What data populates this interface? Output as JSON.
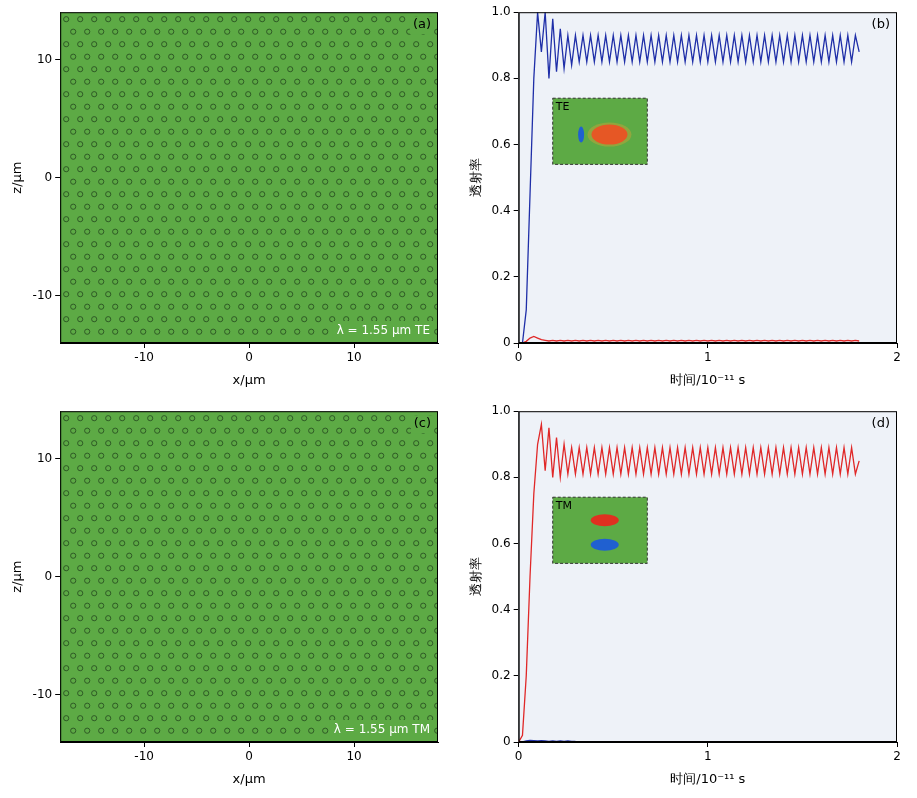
{
  "chart_data": [
    {
      "type": "image",
      "panel": "(a)",
      "annotation": "λ = 1.55 μm TE",
      "x_label": "x/μm",
      "y_label": "z/μm",
      "xlim": [
        -18,
        18
      ],
      "xticks": [
        -10,
        0,
        10
      ],
      "ylim": [
        -14,
        14
      ],
      "yticks": [
        -10,
        0,
        10
      ],
      "grid": false
    },
    {
      "type": "line",
      "panel": "(b)",
      "inset_label": "TE",
      "x_label": "时间/10⁻¹¹ s",
      "y_label": "透射率",
      "xlim": [
        0,
        2
      ],
      "xticks": [
        0,
        1,
        2
      ],
      "ylim": [
        0,
        1
      ],
      "yticks": [
        0,
        0.2,
        0.4,
        0.6,
        0.8,
        {
          "value": 1,
          "label": "1.0"
        }
      ],
      "grid": false,
      "x": [
        0,
        0.02,
        0.04,
        0.06,
        0.08,
        0.1,
        0.12,
        0.14,
        0.16,
        0.18,
        0.2,
        0.22,
        0.24,
        0.26,
        0.28,
        0.3,
        0.32,
        0.34,
        0.36,
        0.38,
        0.4,
        0.42,
        0.44,
        0.46,
        0.48,
        0.5,
        0.52,
        0.54,
        0.56,
        0.58,
        0.6,
        0.62,
        0.64,
        0.66,
        0.68,
        0.7,
        0.72,
        0.74,
        0.76,
        0.78,
        0.8,
        0.82,
        0.84,
        0.86,
        0.88,
        0.9,
        0.92,
        0.94,
        0.96,
        0.98,
        1,
        1.02,
        1.04,
        1.06,
        1.08,
        1.1,
        1.12,
        1.14,
        1.16,
        1.18,
        1.2,
        1.22,
        1.24,
        1.26,
        1.28,
        1.3,
        1.32,
        1.34,
        1.36,
        1.38,
        1.4,
        1.42,
        1.44,
        1.46,
        1.48,
        1.5,
        1.52,
        1.54,
        1.56,
        1.58,
        1.6,
        1.62,
        1.64,
        1.66,
        1.68,
        1.7,
        1.72,
        1.74,
        1.76,
        1.78,
        1.8
      ],
      "series": [
        {
          "color": "#1f2fa8",
          "values": [
            0,
            0,
            0.1,
            0.45,
            0.8,
            1.0,
            0.88,
            1.0,
            0.8,
            0.98,
            0.82,
            0.95,
            0.83,
            0.93,
            0.84,
            0.93,
            0.85,
            0.93,
            0.85,
            0.93,
            0.85,
            0.93,
            0.85,
            0.93,
            0.85,
            0.93,
            0.85,
            0.93,
            0.85,
            0.93,
            0.85,
            0.93,
            0.85,
            0.93,
            0.85,
            0.93,
            0.85,
            0.93,
            0.85,
            0.93,
            0.85,
            0.93,
            0.85,
            0.93,
            0.85,
            0.93,
            0.85,
            0.93,
            0.85,
            0.93,
            0.85,
            0.93,
            0.85,
            0.93,
            0.85,
            0.93,
            0.85,
            0.93,
            0.85,
            0.93,
            0.85,
            0.93,
            0.85,
            0.93,
            0.85,
            0.93,
            0.85,
            0.93,
            0.85,
            0.93,
            0.85,
            0.93,
            0.85,
            0.93,
            0.85,
            0.93,
            0.85,
            0.93,
            0.85,
            0.93,
            0.85,
            0.93,
            0.85,
            0.93,
            0.85,
            0.93,
            0.85,
            0.93,
            0.85,
            0.93,
            0.88
          ]
        },
        {
          "color": "#e02828",
          "values": [
            0,
            0,
            0.005,
            0.015,
            0.02,
            0.015,
            0.01,
            0.008,
            0.006,
            0.008,
            0.006,
            0.008,
            0.006,
            0.008,
            0.006,
            0.008,
            0.006,
            0.008,
            0.006,
            0.008,
            0.006,
            0.008,
            0.006,
            0.008,
            0.006,
            0.008,
            0.006,
            0.008,
            0.006,
            0.008,
            0.006,
            0.008,
            0.006,
            0.008,
            0.006,
            0.008,
            0.006,
            0.008,
            0.006,
            0.008,
            0.006,
            0.008,
            0.006,
            0.008,
            0.006,
            0.008,
            0.006,
            0.008,
            0.006,
            0.008,
            0.006,
            0.008,
            0.006,
            0.008,
            0.006,
            0.008,
            0.006,
            0.008,
            0.006,
            0.008,
            0.006,
            0.008,
            0.006,
            0.008,
            0.006,
            0.008,
            0.006,
            0.008,
            0.006,
            0.008,
            0.006,
            0.008,
            0.006,
            0.008,
            0.006,
            0.008,
            0.006,
            0.008,
            0.006,
            0.008,
            0.006,
            0.008,
            0.006,
            0.008,
            0.006,
            0.008,
            0.006,
            0.008,
            0.006,
            0.008,
            0.006
          ]
        }
      ]
    },
    {
      "type": "image",
      "panel": "(c)",
      "annotation": "λ = 1.55 μm TM",
      "x_label": "x/μm",
      "y_label": "z/μm",
      "xlim": [
        -18,
        18
      ],
      "xticks": [
        -10,
        0,
        10
      ],
      "ylim": [
        -14,
        14
      ],
      "yticks": [
        -10,
        0,
        10
      ],
      "grid": false
    },
    {
      "type": "line",
      "panel": "(d)",
      "inset_label": "TM",
      "x_label": "时间/10⁻¹¹ s",
      "y_label": "透射率",
      "xlim": [
        0,
        2
      ],
      "xticks": [
        0,
        1,
        2
      ],
      "ylim": [
        0,
        1
      ],
      "yticks": [
        0,
        0.2,
        0.4,
        0.6,
        0.8,
        {
          "value": 1,
          "label": "1.0"
        }
      ],
      "grid": false,
      "x": [
        0,
        0.02,
        0.04,
        0.06,
        0.08,
        0.1,
        0.12,
        0.14,
        0.16,
        0.18,
        0.2,
        0.22,
        0.24,
        0.26,
        0.28,
        0.3,
        0.32,
        0.34,
        0.36,
        0.38,
        0.4,
        0.42,
        0.44,
        0.46,
        0.48,
        0.5,
        0.52,
        0.54,
        0.56,
        0.58,
        0.6,
        0.62,
        0.64,
        0.66,
        0.68,
        0.7,
        0.72,
        0.74,
        0.76,
        0.78,
        0.8,
        0.82,
        0.84,
        0.86,
        0.88,
        0.9,
        0.92,
        0.94,
        0.96,
        0.98,
        1,
        1.02,
        1.04,
        1.06,
        1.08,
        1.1,
        1.12,
        1.14,
        1.16,
        1.18,
        1.2,
        1.22,
        1.24,
        1.26,
        1.28,
        1.3,
        1.32,
        1.34,
        1.36,
        1.38,
        1.4,
        1.42,
        1.44,
        1.46,
        1.48,
        1.5,
        1.52,
        1.54,
        1.56,
        1.58,
        1.6,
        1.62,
        1.64,
        1.66,
        1.68,
        1.7,
        1.72,
        1.74,
        1.76,
        1.78,
        1.8
      ],
      "series": [
        {
          "color": "#e02828",
          "values": [
            0,
            0.02,
            0.2,
            0.5,
            0.75,
            0.9,
            0.96,
            0.82,
            0.95,
            0.8,
            0.92,
            0.8,
            0.9,
            0.81,
            0.89,
            0.81,
            0.89,
            0.81,
            0.89,
            0.81,
            0.89,
            0.81,
            0.89,
            0.81,
            0.89,
            0.81,
            0.89,
            0.81,
            0.89,
            0.81,
            0.89,
            0.81,
            0.89,
            0.81,
            0.89,
            0.81,
            0.89,
            0.81,
            0.89,
            0.81,
            0.89,
            0.81,
            0.89,
            0.81,
            0.89,
            0.81,
            0.89,
            0.81,
            0.89,
            0.81,
            0.89,
            0.81,
            0.89,
            0.81,
            0.89,
            0.81,
            0.89,
            0.81,
            0.89,
            0.81,
            0.89,
            0.81,
            0.89,
            0.81,
            0.89,
            0.81,
            0.89,
            0.81,
            0.89,
            0.81,
            0.89,
            0.81,
            0.89,
            0.81,
            0.89,
            0.81,
            0.89,
            0.81,
            0.89,
            0.81,
            0.89,
            0.81,
            0.89,
            0.81,
            0.89,
            0.81,
            0.89,
            0.81,
            0.89,
            0.81,
            0.85
          ]
        },
        {
          "color": "#1f2fa8",
          "values": [
            0,
            0,
            0.003,
            0.005,
            0.004,
            0.003,
            0.004,
            0.003,
            0.002,
            0.003,
            0.002,
            0.003,
            0.002,
            0.003,
            0.002,
            0.002,
            null,
            null,
            null,
            null,
            null,
            null,
            null,
            null,
            null,
            null,
            null,
            null,
            null,
            null,
            null,
            null,
            null,
            null,
            null,
            null,
            null,
            null,
            null,
            null,
            null,
            null,
            null,
            null,
            null,
            null,
            null,
            null,
            null,
            null,
            null,
            null,
            null,
            null,
            null,
            null,
            null,
            null,
            null,
            null,
            null,
            null,
            null,
            null,
            null,
            null,
            null,
            null,
            null,
            null,
            null,
            null,
            null,
            null,
            null,
            null,
            null,
            null,
            null,
            null,
            null,
            null,
            null,
            null,
            null,
            null,
            null,
            null,
            null,
            null,
            null
          ]
        }
      ]
    }
  ]
}
